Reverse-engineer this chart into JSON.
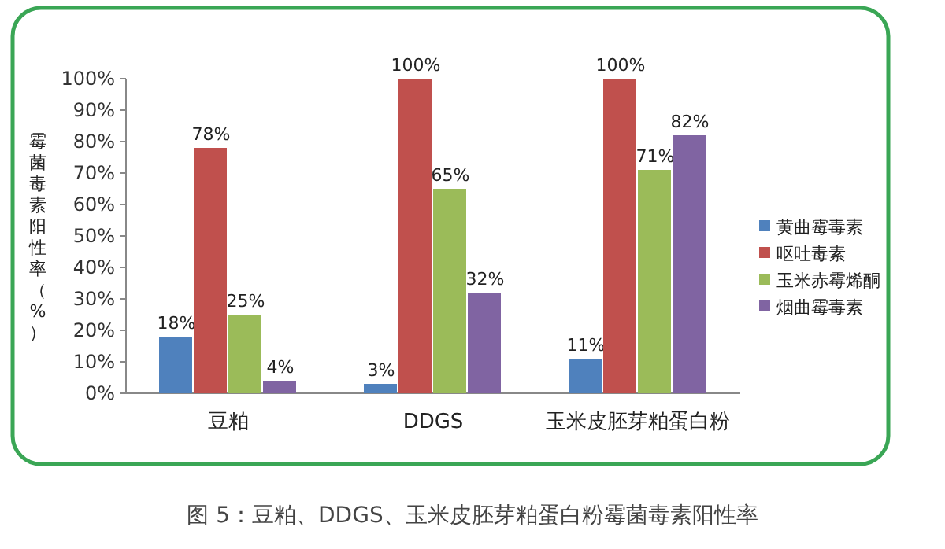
{
  "chart_data": {
    "type": "bar",
    "ylabel": "霉菌毒素阳性率（%）",
    "categories": [
      "豆粕",
      "DDGS",
      "玉米皮胚芽粕蛋白粉"
    ],
    "series": [
      {
        "name": "黄曲霉毒素",
        "color": "#4f81bd",
        "values": [
          18,
          3,
          11
        ],
        "value_labels": [
          "18%",
          "3%",
          "11%"
        ]
      },
      {
        "name": "呕吐毒素",
        "color": "#c0504d",
        "values": [
          78,
          100,
          100
        ],
        "value_labels": [
          "78%",
          "100%",
          "100%"
        ]
      },
      {
        "name": "玉米赤霉烯酮",
        "color": "#9bbb59",
        "values": [
          25,
          65,
          71
        ],
        "value_labels": [
          "25%",
          "65%",
          "71%"
        ]
      },
      {
        "name": "烟曲霉毒素",
        "color": "#8064a2",
        "values": [
          4,
          32,
          82
        ],
        "value_labels": [
          "4%",
          "32%",
          "82%"
        ]
      }
    ],
    "ylim": [
      0,
      100
    ],
    "yticks": [
      {
        "value": 0,
        "label": "0%"
      },
      {
        "value": 10,
        "label": "10%"
      },
      {
        "value": 20,
        "label": "20%"
      },
      {
        "value": 30,
        "label": "30%"
      },
      {
        "value": 40,
        "label": "40%"
      },
      {
        "value": 50,
        "label": "50%"
      },
      {
        "value": 60,
        "label": "60%"
      },
      {
        "value": 70,
        "label": "70%"
      },
      {
        "value": 80,
        "label": "80%"
      },
      {
        "value": 90,
        "label": "90%"
      },
      {
        "value": 100,
        "label": "100%"
      }
    ],
    "legend": "right",
    "grid": false,
    "annotations": [
      "图 5：豆粕、DDGS、玉米皮胚芽粕蛋白粉霉菌毒素阳性率"
    ]
  }
}
